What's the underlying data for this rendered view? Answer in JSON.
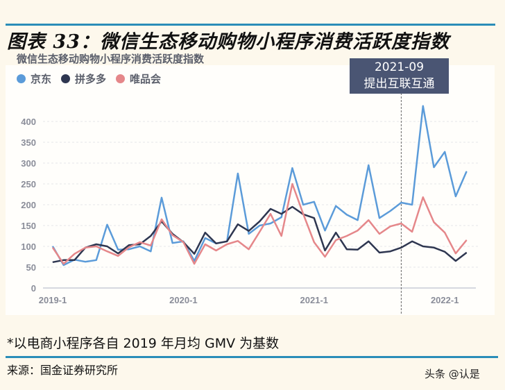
{
  "header": {
    "title": "图表 33：微信生态移动购物小程序消费活跃度指数"
  },
  "chart_data": {
    "type": "line",
    "title": "微信生态移动购物小程序消费活跃度指数",
    "x": [
      "2019-1",
      "2019-2",
      "2019-3",
      "2019-4",
      "2019-5",
      "2019-6",
      "2019-7",
      "2019-8",
      "2019-9",
      "2019-10",
      "2019-11",
      "2019-12",
      "2020-1",
      "2020-2",
      "2020-3",
      "2020-4",
      "2020-5",
      "2020-6",
      "2020-7",
      "2020-8",
      "2020-9",
      "2020-10",
      "2020-11",
      "2020-12",
      "2021-1",
      "2021-2",
      "2021-3",
      "2021-4",
      "2021-5",
      "2021-6",
      "2021-7",
      "2021-8",
      "2021-9",
      "2021-10",
      "2021-11",
      "2021-12",
      "2022-1",
      "2022-2",
      "2022-3"
    ],
    "xticks": [
      "2019-1",
      "2020-1",
      "2021-1",
      "2022-1"
    ],
    "yticks": [
      0,
      50,
      100,
      150,
      200,
      250,
      300,
      350,
      400
    ],
    "ylim": [
      0,
      400
    ],
    "grid": true,
    "legend": "top-left",
    "series": [
      {
        "name": "京东",
        "color": "#5b9bd9",
        "values": [
          100,
          55,
          68,
          63,
          67,
          152,
          92,
          93,
          100,
          88,
          217,
          108,
          112,
          65,
          120,
          107,
          112,
          275,
          130,
          150,
          155,
          170,
          288,
          200,
          207,
          138,
          197,
          176,
          163,
          295,
          168,
          185,
          205,
          200,
          437,
          290,
          327,
          220,
          280
        ]
      },
      {
        "name": "拼多多",
        "color": "#2e3650",
        "values": [
          62,
          67,
          67,
          97,
          105,
          100,
          83,
          103,
          105,
          125,
          160,
          130,
          110,
          82,
          133,
          107,
          112,
          153,
          137,
          160,
          190,
          178,
          195,
          177,
          168,
          90,
          133,
          93,
          92,
          112,
          85,
          88,
          97,
          112,
          100,
          97,
          87,
          65,
          85
        ]
      },
      {
        "name": "唯品会",
        "color": "#e5878a",
        "values": [
          97,
          58,
          82,
          97,
          100,
          88,
          77,
          98,
          110,
          102,
          165,
          127,
          110,
          58,
          105,
          90,
          105,
          113,
          93,
          135,
          178,
          125,
          250,
          178,
          110,
          75,
          115,
          125,
          138,
          163,
          130,
          148,
          155,
          135,
          218,
          158,
          133,
          83,
          115
        ]
      }
    ],
    "annotation": {
      "x": "2021-9",
      "line1": "2021-09",
      "line2": "提出互联互通"
    }
  },
  "footer": {
    "note": "*以电商小程序各自 2019 年月均 GMV 为基数",
    "source": "来源：国金证券研究所",
    "watermark": "头条 @认是"
  }
}
